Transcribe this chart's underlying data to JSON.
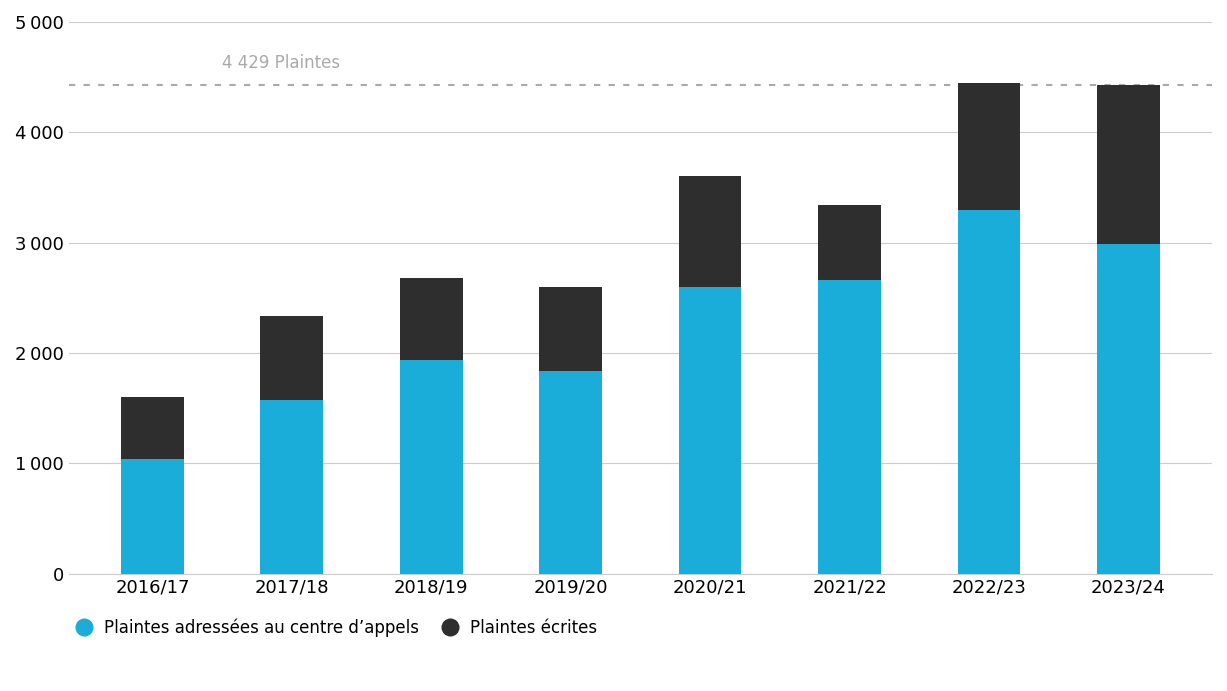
{
  "categories": [
    "2016/17",
    "2017/18",
    "2018/19",
    "2019/20",
    "2020/21",
    "2021/22",
    "2022/23",
    "2023/24"
  ],
  "blue_values": [
    1040,
    1570,
    1940,
    1840,
    2600,
    2660,
    3300,
    2990
  ],
  "dark_values": [
    560,
    770,
    740,
    760,
    1000,
    680,
    1150,
    1439
  ],
  "blue_color": "#1AADDA",
  "dark_color": "#2e2e2e",
  "annotation_text": "4 429 Plaintes",
  "annotation_value": 4429,
  "annotation_color": "#aaaaaa",
  "ylim": [
    0,
    5000
  ],
  "yticks": [
    0,
    1000,
    2000,
    3000,
    4000,
    5000
  ],
  "background_color": "#ffffff",
  "grid_color": "#cccccc",
  "legend_label_blue": "Plaintes adressées au centre d’appels",
  "legend_label_dark": "Plaintes écrites",
  "tick_fontsize": 13,
  "legend_fontsize": 12,
  "annotation_fontsize": 12
}
